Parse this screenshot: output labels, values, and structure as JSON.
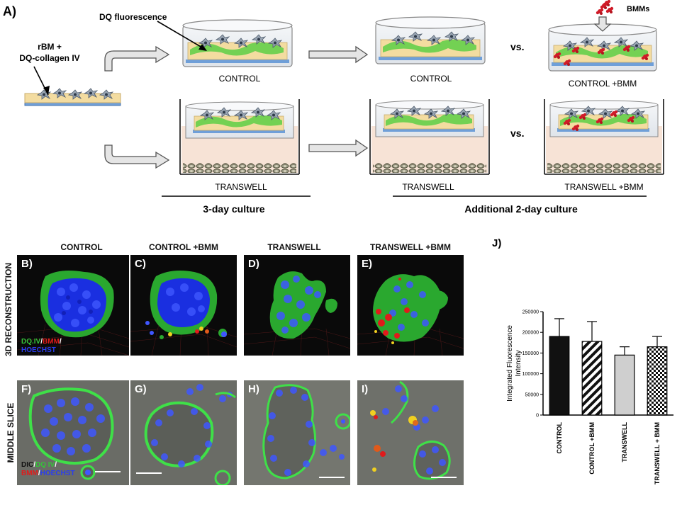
{
  "schematic": {
    "panel_label": "A)",
    "dq_fluorescence_label": "DQ fluorescence",
    "rbm_label_line1": "rBM +",
    "rbm_label_line2": "DQ-collagen IV",
    "bmms_label": "BMMs",
    "vs_label": "vs.",
    "control_label": "CONTROL",
    "control_bmm_label": "CONTROL +BMM",
    "transwell_label": "TRANSWELL",
    "transwell_bmm_label": "TRANSWELL +BMM",
    "culture3_label": "3-day culture",
    "culture2_label": "Additional 2-day culture"
  },
  "columns": [
    "CONTROL",
    "CONTROL +BMM",
    "TRANSWELL",
    "TRANSWELL +BMM"
  ],
  "rows": {
    "reconstruction": "3D RECONSTRUCTION",
    "slice": "MIDDLE SLICE"
  },
  "panels": {
    "top": [
      "B)",
      "C)",
      "D)",
      "E)"
    ],
    "bottom": [
      "F)",
      "G)",
      "H)",
      "I)"
    ]
  },
  "legend_3d": {
    "dq": "DQ.IV",
    "sep1": "/",
    "bmm": "BMM",
    "sep2": "/",
    "hoechst": "HOECHST"
  },
  "legend_slice": {
    "dic": "DIC",
    "sep1": "/",
    "dq": "DQ IV",
    "sep2": "/",
    "bmm": "BMM",
    "sep3": "/",
    "hoechst": "HOECHST"
  },
  "colors": {
    "dq_green": "#35c43a",
    "bmm_red": "#e01b1b",
    "hoechst_blue": "#2a3df0",
    "dic_gray": "#9a9a9a",
    "cell_gray": "#8f9aa6",
    "gel_yellow": "#f3dca0",
    "membrane_blue": "#6f9fd8",
    "medium_pink": "#f7e3d6"
  },
  "chart_data": {
    "type": "bar",
    "panel_label": "J)",
    "ylabel": "Integrated Fluorescence Intensity",
    "ylim": [
      0,
      250000
    ],
    "yticks": [
      "0",
      "50000",
      "100000",
      "150000",
      "200000",
      "250000"
    ],
    "categories": [
      "CONTROL",
      "CONTROL +BMM",
      "TRANSWELL",
      "TRANSWELL + BMM"
    ],
    "values": [
      190000,
      178000,
      145000,
      165000
    ],
    "errors": [
      43000,
      48000,
      20000,
      25000
    ],
    "fills": [
      "solid-black",
      "diagonal-hatch",
      "light-gray",
      "checker"
    ],
    "grid": false
  }
}
